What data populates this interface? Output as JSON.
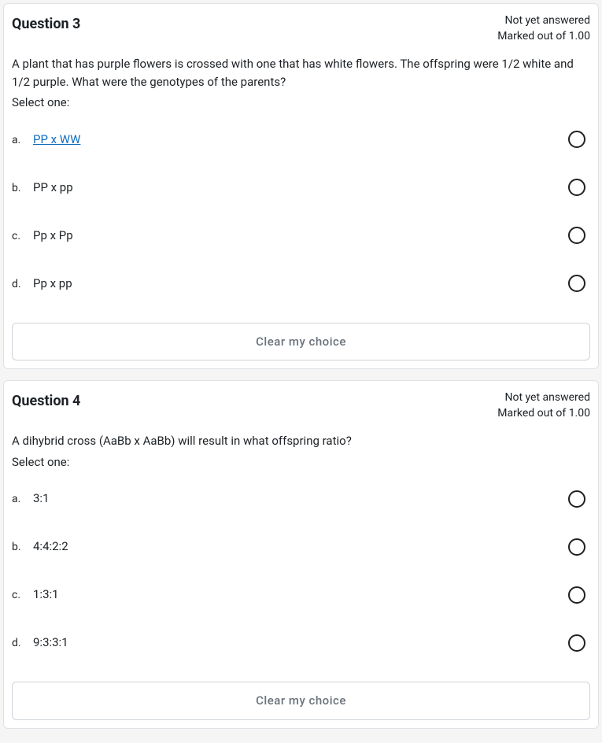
{
  "questions": [
    {
      "title": "Question 3",
      "status_line1": "Not yet answered",
      "status_line2": "Marked out of 1.00",
      "text": "A plant that has purple flowers is crossed with one that has white flowers. The offspring were 1/2 white and 1/2 purple. What were the genotypes of the parents?",
      "select_one": "Select one:",
      "options": [
        {
          "letter": "a.",
          "label": "PP x WW",
          "link": true
        },
        {
          "letter": "b.",
          "label": "PP x pp",
          "link": false
        },
        {
          "letter": "c.",
          "label": "Pp x Pp",
          "link": false
        },
        {
          "letter": "d.",
          "label": "Pp x pp",
          "link": false
        }
      ],
      "clear": "Clear my choice"
    },
    {
      "title": "Question 4",
      "status_line1": "Not yet answered",
      "status_line2": "Marked out of 1.00",
      "text": "A dihybrid cross (AaBb x AaBb) will result in what offspring ratio?",
      "select_one": "Select one:",
      "options": [
        {
          "letter": "a.",
          "label": "3:1",
          "link": false
        },
        {
          "letter": "b.",
          "label": "4:4:2:2",
          "link": false
        },
        {
          "letter": "c.",
          "label": "1:3:1",
          "link": false
        },
        {
          "letter": "d.",
          "label": "9:3:3:1",
          "link": false
        }
      ],
      "clear": "Clear my choice"
    }
  ],
  "colors": {
    "card_bg": "#ffffff",
    "card_border": "#dee2e6",
    "body_bg": "#f5f5f5",
    "text": "#1d2125",
    "link": "#0f6cbf",
    "clear_border": "#ced4da",
    "clear_text": "#6a737b",
    "radio_border": "#1d2125"
  }
}
